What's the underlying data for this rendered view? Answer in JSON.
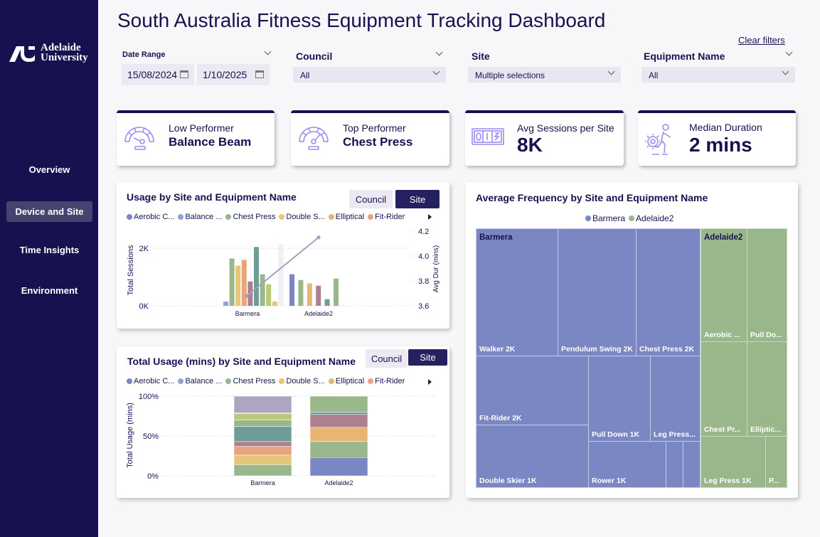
{
  "brand": {
    "logo_line1": "Adelaide",
    "logo_line2": "University"
  },
  "sidebar": {
    "items": [
      {
        "label": "Overview",
        "active": false
      },
      {
        "label": "Device and Site",
        "active": true
      },
      {
        "label": "Time Insights",
        "active": false
      },
      {
        "label": "Environment",
        "active": false
      }
    ]
  },
  "header": {
    "title": "South Australia Fitness Equipment Tracking Dashboard",
    "clear_filters": "Clear filters"
  },
  "filters": {
    "date_range": {
      "label": "Date Range",
      "start": "15/08/2024",
      "end": "1/10/2025"
    },
    "council": {
      "label": "Council",
      "value": "All"
    },
    "site": {
      "label": "Site",
      "value": "Multiple selections"
    },
    "equipment": {
      "label": "Equipment Name",
      "value": "All"
    }
  },
  "kpis": [
    {
      "label": "Low Performer",
      "value": "Balance Beam",
      "icon": "gauge-icon"
    },
    {
      "label": "Top Performer",
      "value": "Chest Press",
      "icon": "gauge-icon"
    },
    {
      "label": "Avg Sessions per Site",
      "value": "8K",
      "icon": "counter-icon"
    },
    {
      "label": "Median Duration",
      "value": "2 mins",
      "icon": "runner-gear-icon"
    }
  ],
  "colors": {
    "navy": "#161250",
    "legend": [
      "#7a87c3",
      "#8fa3d6",
      "#9ab78c",
      "#e6c77a",
      "#e8b574",
      "#e8a47c"
    ]
  },
  "legend_items": [
    "Aerobic C...",
    "Balance ...",
    "Chest Press",
    "Double S...",
    "Elliptical",
    "Fit-Rider"
  ],
  "usage_chart": {
    "title": "Usage by Site and Equipment Name",
    "toggle": {
      "council": "Council",
      "site": "Site"
    }
  },
  "total_usage_chart": {
    "title": "Total Usage (mins) by Site and Equipment Name",
    "toggle": {
      "council": "Council",
      "site": "Site"
    }
  },
  "avg_freq_chart": {
    "title": "Average Frequency by Site and Equipment Name",
    "legend": [
      "Barmera",
      "Adelaide2"
    ]
  },
  "chart_data": [
    {
      "type": "bar",
      "title": "Usage by Site and Equipment Name",
      "categories": [
        "Barmera",
        "Adelaide2"
      ],
      "ylabel": "Total Sessions",
      "y2label": "Avg Dur (mins)",
      "yticks": [
        "0K",
        "2K"
      ],
      "y2ticks": [
        "3.6",
        "3.8",
        "4.0",
        "4.2"
      ],
      "ylim": [
        0,
        2600
      ],
      "y2lim": [
        3.6,
        4.2
      ],
      "bars": {
        "Barmera": [
          {
            "color": "#8fa3d6",
            "value": 150
          },
          {
            "color": "#9ab78c",
            "value": 1650
          },
          {
            "color": "#e6c77a",
            "value": 1400
          },
          {
            "color": "#e8a47c",
            "value": 1600
          },
          {
            "color": "#ad8090",
            "value": 850
          },
          {
            "color": "#6e9d97",
            "value": 2050
          },
          {
            "color": "#9ab78c",
            "value": 1100
          },
          {
            "color": "#bcc97a",
            "value": 750
          },
          {
            "color": "#e6c77a",
            "value": 150
          },
          {
            "color": "#efeff6",
            "value": 2150
          }
        ],
        "Adelaide2": [
          {
            "color": "#7a87c3",
            "value": 1100
          },
          {
            "color": "#9ab78c",
            "value": 900
          },
          {
            "color": "#e8b574",
            "value": 780
          },
          {
            "color": "#ad8090",
            "value": 700
          },
          {
            "color": "#6e9d97",
            "value": 230
          },
          {
            "color": "#9ab78c",
            "value": 950
          }
        ]
      },
      "line": {
        "name": "Avg Dur (mins)",
        "values": [
          3.68,
          4.15
        ],
        "color": "#a89cc8"
      }
    },
    {
      "type": "bar",
      "stacked": "100%",
      "title": "Total Usage (mins) by Site and Equipment Name",
      "categories": [
        "Barmera",
        "Adelaide2"
      ],
      "ylabel": "Total Usage (mins)",
      "yticks": [
        "0%",
        "50%",
        "100%"
      ],
      "ylim": [
        0,
        100
      ],
      "stacks": {
        "Barmera": [
          {
            "color": "#9ab78c",
            "value": 14
          },
          {
            "color": "#e6c77a",
            "value": 12
          },
          {
            "color": "#e8a47c",
            "value": 11
          },
          {
            "color": "#ad8090",
            "value": 6
          },
          {
            "color": "#6e9d97",
            "value": 19
          },
          {
            "color": "#9ab78c",
            "value": 8
          },
          {
            "color": "#bcc97a",
            "value": 8
          },
          {
            "color": "#e6c77a",
            "value": 1
          },
          {
            "color": "#afa5c3",
            "value": 21
          }
        ],
        "Adelaide2": [
          {
            "color": "#7a87c3",
            "value": 23
          },
          {
            "color": "#9ab78c",
            "value": 20
          },
          {
            "color": "#e8b574",
            "value": 18
          },
          {
            "color": "#ad8090",
            "value": 16
          },
          {
            "color": "#6e9d97",
            "value": 3
          },
          {
            "color": "#9ab78c",
            "value": 20
          }
        ]
      }
    },
    {
      "type": "treemap",
      "title": "Average Frequency by Site and Equipment Name",
      "groups": [
        {
          "name": "Barmera",
          "items": [
            {
              "label": "Walker 2K"
            },
            {
              "label": "Pendulum Swing 2K"
            },
            {
              "label": "Chest Press 2K"
            },
            {
              "label": "Fit-Rider 2K"
            },
            {
              "label": "Pull Down 1K"
            },
            {
              "label": "Leg Press..."
            },
            {
              "label": "Double Skier 1K"
            },
            {
              "label": "Rower 1K"
            },
            {
              "label": ""
            },
            {
              "label": ""
            }
          ]
        },
        {
          "name": "Adelaide2",
          "items": [
            {
              "label": "Aerobic ..."
            },
            {
              "label": "Pull Do..."
            },
            {
              "label": "Chest Pr..."
            },
            {
              "label": "Elliptic..."
            },
            {
              "label": "Leg Press 1K"
            },
            {
              "label": "P..."
            }
          ]
        }
      ]
    }
  ]
}
